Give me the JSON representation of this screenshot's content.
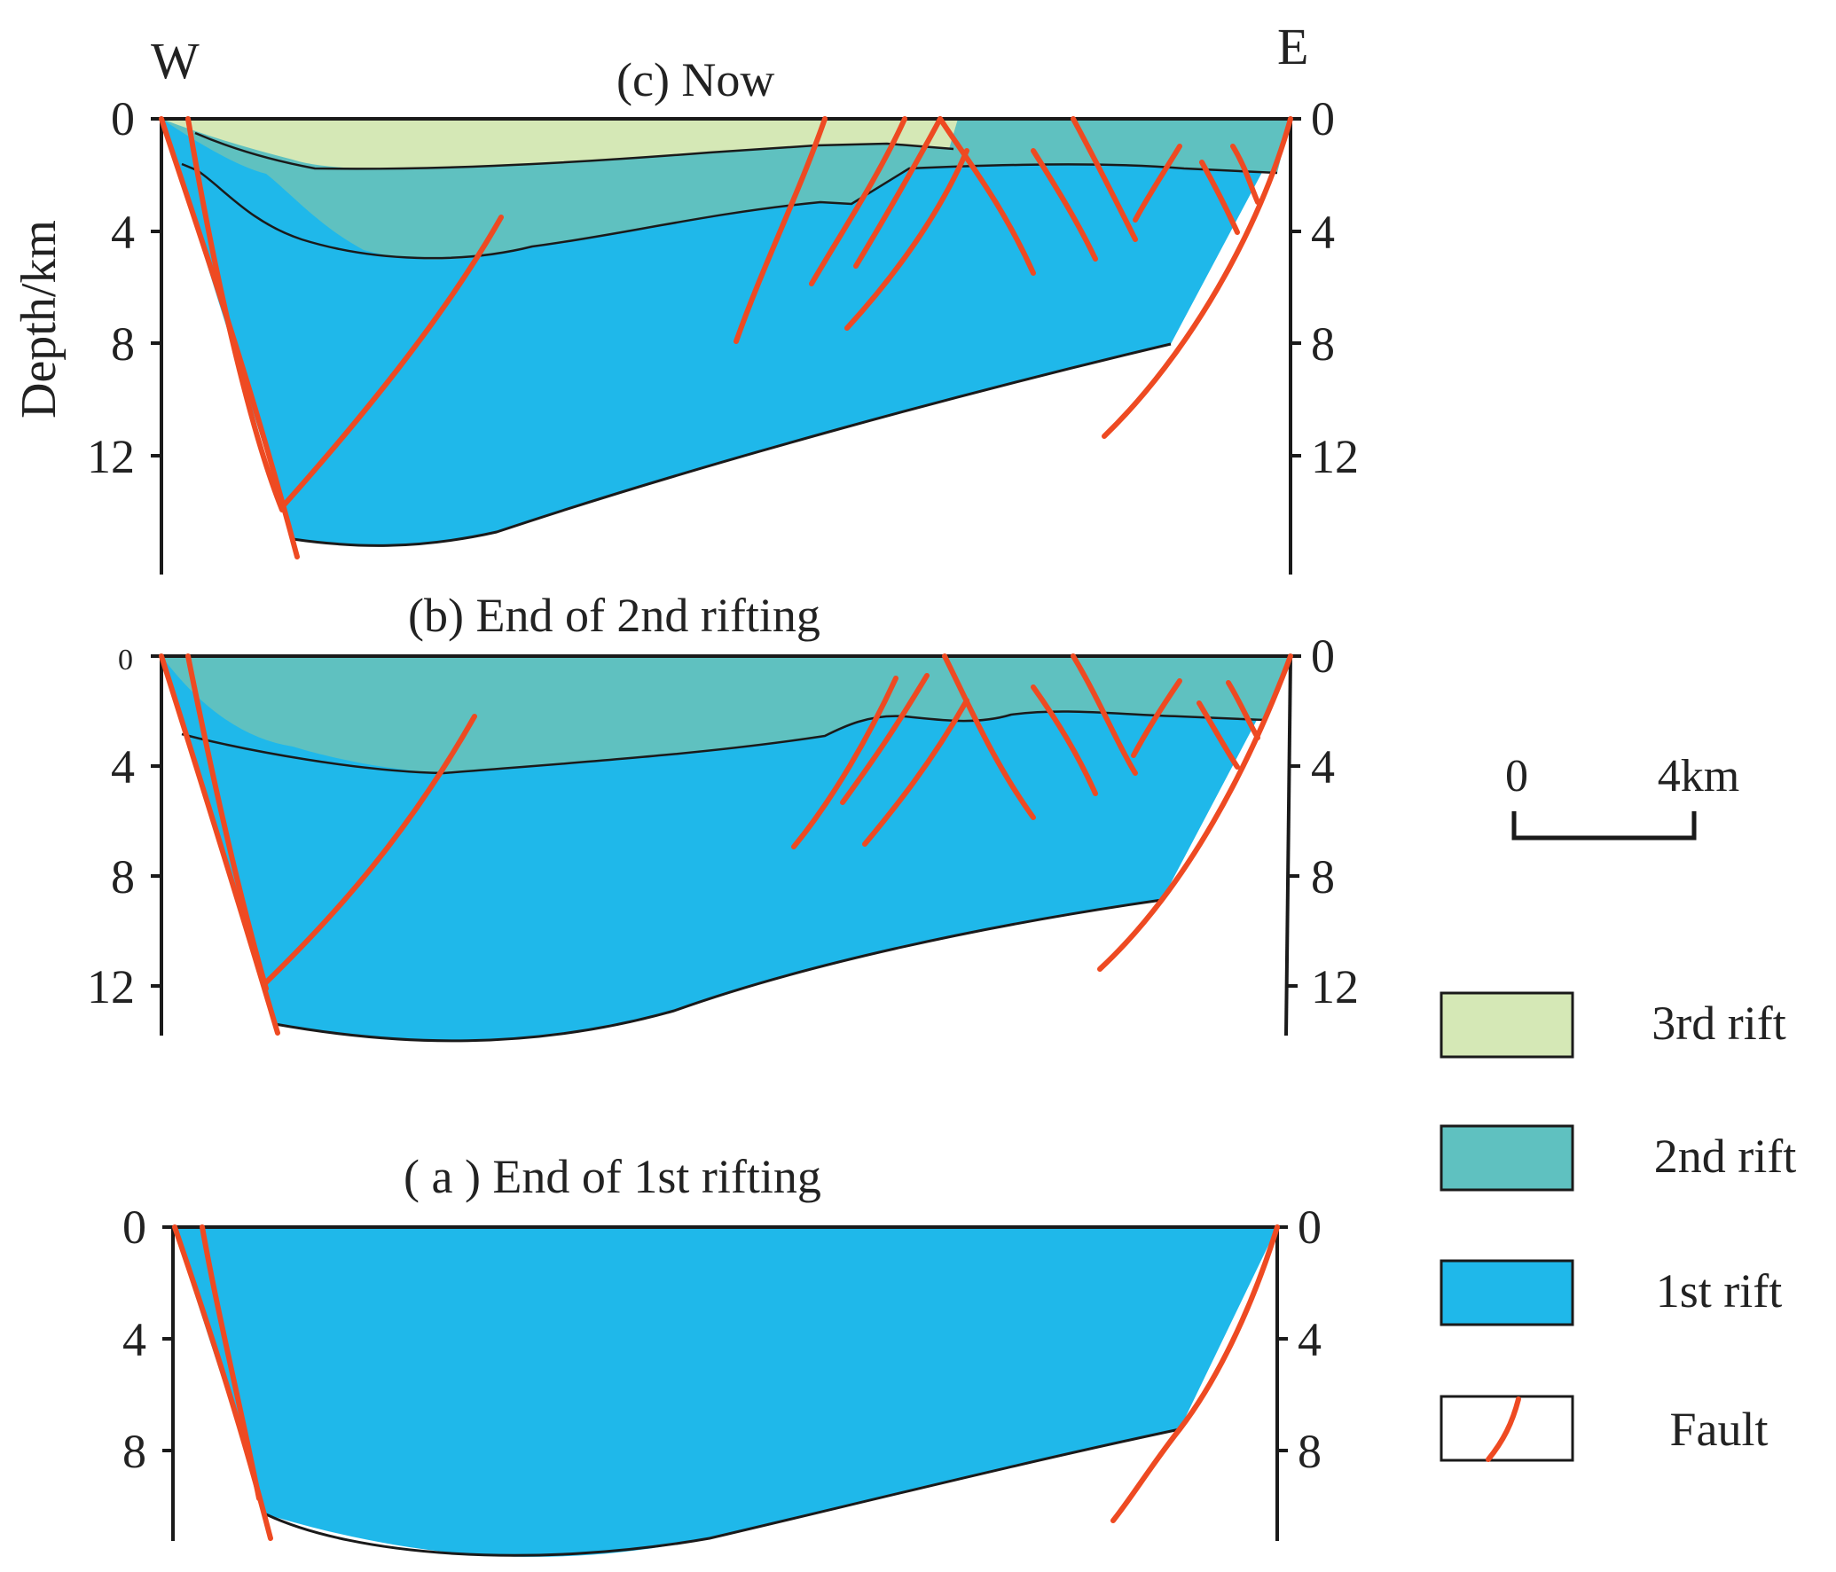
{
  "directions": {
    "west": "W",
    "east": "E"
  },
  "axis_label": "Depth/km",
  "panels": {
    "c": {
      "title": "(c) Now",
      "left_ticks": [
        "0",
        "4",
        "8",
        "12"
      ],
      "right_ticks": [
        "0",
        "4",
        "8",
        "12"
      ]
    },
    "b": {
      "title": "(b) End of 2nd rifting",
      "left_ticks": [
        "0",
        "4",
        "8",
        "12"
      ],
      "right_ticks": [
        "0",
        "4",
        "8",
        "12"
      ]
    },
    "a": {
      "title": "( a ) End of 1st rifting",
      "left_ticks": [
        "0",
        "4",
        "8"
      ],
      "right_ticks": [
        "0",
        "4",
        "8"
      ]
    }
  },
  "scale_bar": {
    "start": "0",
    "end": "4km"
  },
  "legend": [
    {
      "label": "3rd rift",
      "color": "#d5e8b6"
    },
    {
      "label": "2nd rift",
      "color": "#5fc1c0"
    },
    {
      "label": "1st rift",
      "color": "#1fb8ea"
    },
    {
      "label": "Fault",
      "color": "#ee4a22"
    }
  ],
  "colors": {
    "fault": "#ee4a22",
    "outline": "#1a1a1a"
  }
}
